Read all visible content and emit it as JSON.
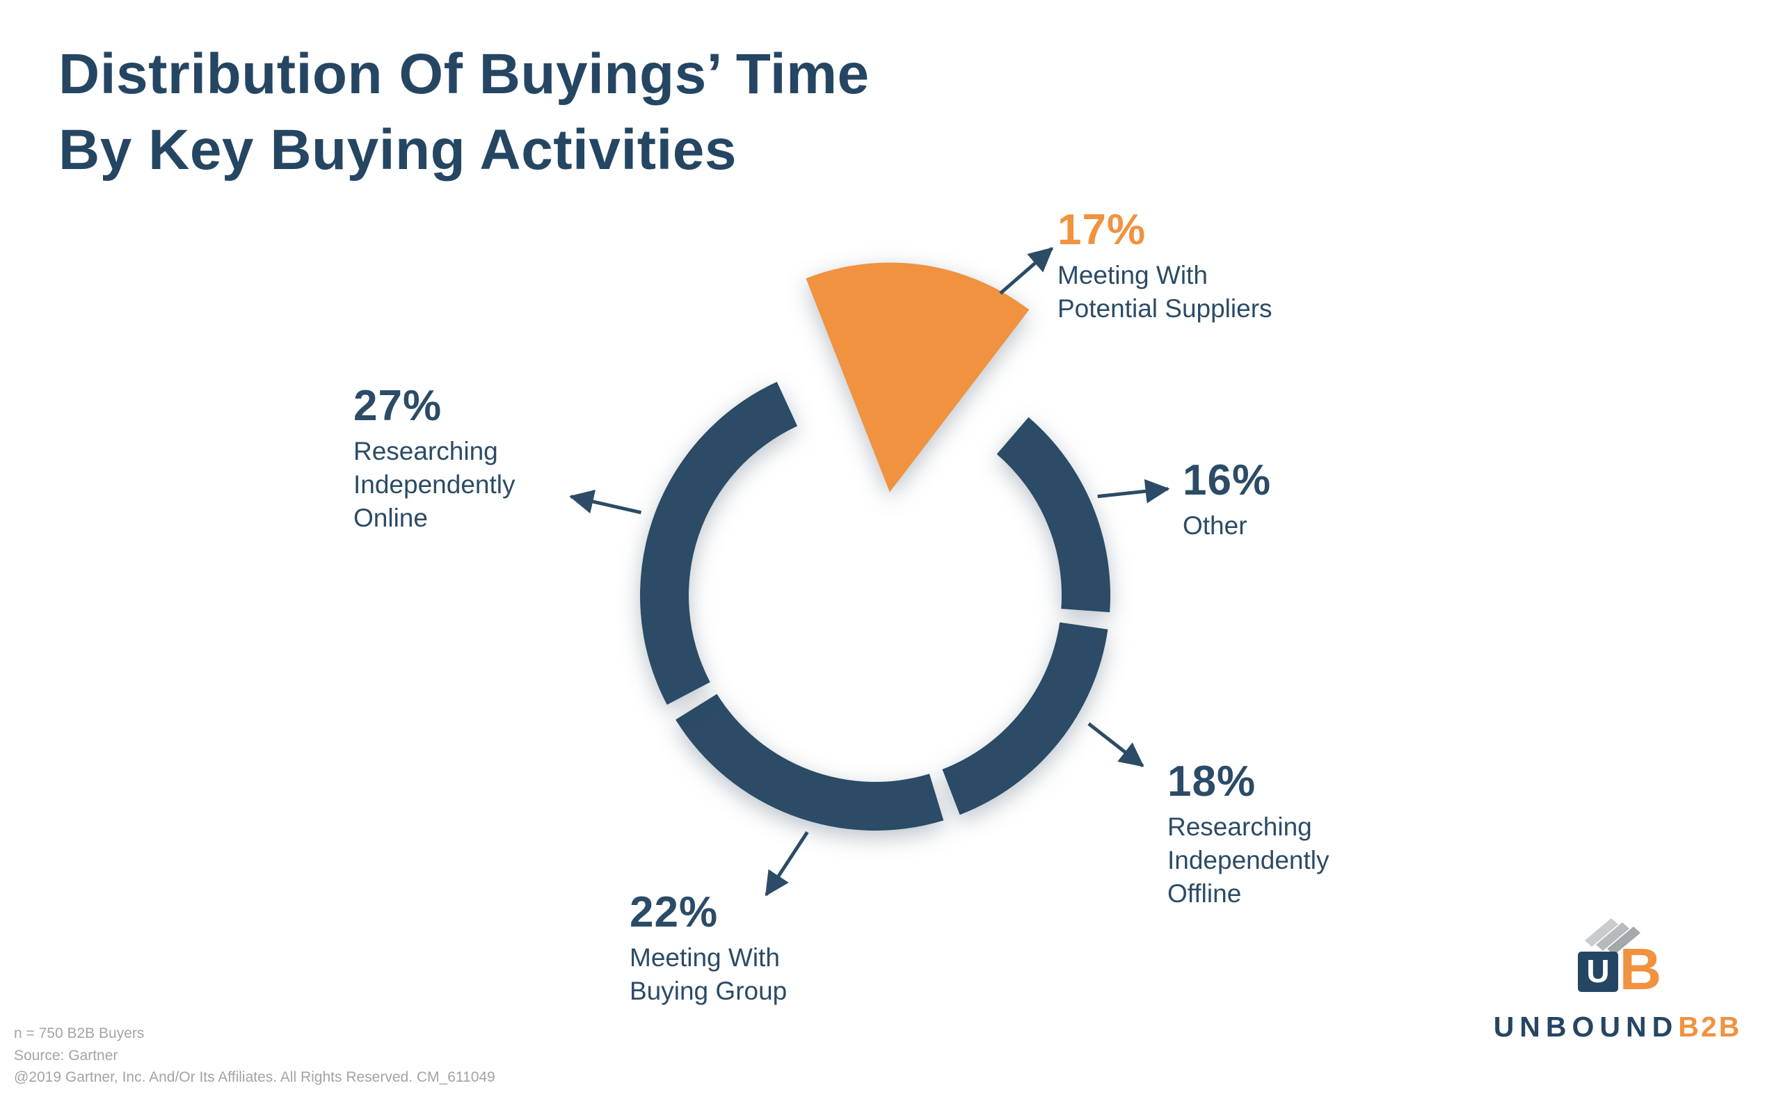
{
  "header": {
    "title_line1": "Distribution Of Buyings’ Time",
    "title_line2": "By Key Buying Activities"
  },
  "colors": {
    "navy": "#2b4b66",
    "orange": "#f0923f",
    "footer_gray": "#a0a4a8"
  },
  "chart_data": {
    "type": "pie",
    "title": "Distribution Of Buyings’ Time By Key Buying Activities",
    "unit": "percent",
    "legend_position": "callout-labels",
    "donut": true,
    "segments": [
      {
        "label": "Meeting With Potential Suppliers",
        "value": 17,
        "display": "17%",
        "display_label": "Meeting With\nPotential Suppliers",
        "color": "#f0923f",
        "exploded": true
      },
      {
        "label": "Other",
        "value": 16,
        "display": "16%",
        "display_label": "Other",
        "color": "#2b4b66",
        "exploded": false
      },
      {
        "label": "Researching Independently Offline",
        "value": 18,
        "display": "18%",
        "display_label": "Researching\nIndependently\nOffline",
        "color": "#2b4b66",
        "exploded": false
      },
      {
        "label": "Meeting With Buying Group",
        "value": 22,
        "display": "22%",
        "display_label": "Meeting With\nBuying Group",
        "color": "#2b4b66",
        "exploded": false
      },
      {
        "label": "Researching Independently Online",
        "value": 27,
        "display": "27%",
        "display_label": "Researching\nIndependently\nOnline",
        "color": "#2b4b66",
        "exploded": false
      }
    ]
  },
  "footer": {
    "lines": [
      "n = 750 B2B Buyers",
      "Source: Gartner",
      "@2019 Gartner, Inc. And/Or Its Affiliates. All Rights Reserved. CM_611049"
    ]
  },
  "logo": {
    "primary": "UNBOUND",
    "accent": "B2B",
    "icon_letters": {
      "u": "U",
      "b": "B"
    }
  }
}
